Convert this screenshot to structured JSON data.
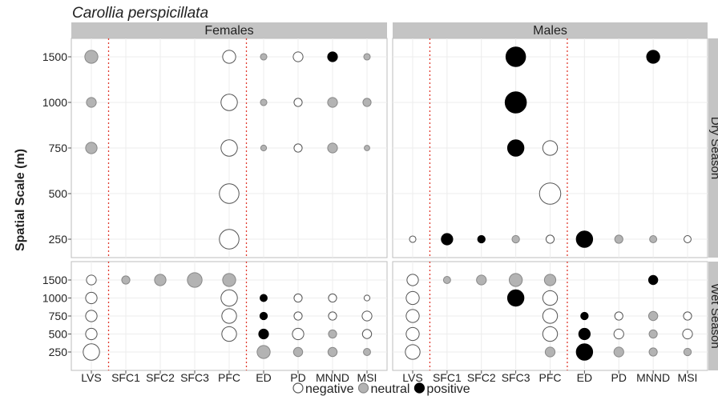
{
  "chart_data": {
    "type": "scatter",
    "title": "Carollia perspicillata",
    "ylabel": "Spatial Scale (m)",
    "xlabel": "",
    "columns": [
      "LVS",
      "SFC1",
      "SFC2",
      "SFC3",
      "PFC",
      "ED",
      "PD",
      "MNND",
      "MSI"
    ],
    "scales": [
      1500,
      1000,
      750,
      500,
      250
    ],
    "sex_panels": [
      "Females",
      "Males"
    ],
    "season_panels": [
      "Dry Season",
      "Wet Season"
    ],
    "separators_after_columns": [
      "LVS",
      "PFC"
    ],
    "grid": true,
    "size_encoding": "relative effect size",
    "legend": {
      "position": "bottom",
      "entries": [
        {
          "key": "negative",
          "label": "negative",
          "fill": "#ffffff",
          "stroke": "#555555"
        },
        {
          "key": "neutral",
          "label": "neutral",
          "fill": "#b3b3b3",
          "stroke": "#888888"
        },
        {
          "key": "positive",
          "label": "positive",
          "fill": "#000000",
          "stroke": "#000000"
        }
      ]
    },
    "panels": [
      {
        "sex": "Females",
        "season": "Dry Season",
        "points": [
          {
            "x": "LVS",
            "y": 1500,
            "effect": "neutral",
            "size": 3
          },
          {
            "x": "PFC",
            "y": 1500,
            "effect": "negative",
            "size": 3
          },
          {
            "x": "ED",
            "y": 1500,
            "effect": "neutral",
            "size": 1
          },
          {
            "x": "PD",
            "y": 1500,
            "effect": "negative",
            "size": 2
          },
          {
            "x": "MNND",
            "y": 1500,
            "effect": "positive",
            "size": 2
          },
          {
            "x": "MSI",
            "y": 1500,
            "effect": "neutral",
            "size": 1
          },
          {
            "x": "LVS",
            "y": 1000,
            "effect": "neutral",
            "size": 2
          },
          {
            "x": "PFC",
            "y": 1000,
            "effect": "negative",
            "size": 4
          },
          {
            "x": "ED",
            "y": 1000,
            "effect": "neutral",
            "size": 1
          },
          {
            "x": "PD",
            "y": 1000,
            "effect": "negative",
            "size": 1.5
          },
          {
            "x": "MNND",
            "y": 1000,
            "effect": "neutral",
            "size": 2
          },
          {
            "x": "MSI",
            "y": 1000,
            "effect": "neutral",
            "size": 1.5
          },
          {
            "x": "LVS",
            "y": 750,
            "effect": "neutral",
            "size": 2.5
          },
          {
            "x": "PFC",
            "y": 750,
            "effect": "negative",
            "size": 4
          },
          {
            "x": "ED",
            "y": 750,
            "effect": "neutral",
            "size": 0.8
          },
          {
            "x": "PD",
            "y": 750,
            "effect": "negative",
            "size": 1.5
          },
          {
            "x": "MNND",
            "y": 750,
            "effect": "neutral",
            "size": 2
          },
          {
            "x": "MSI",
            "y": 750,
            "effect": "neutral",
            "size": 0.7
          },
          {
            "x": "PFC",
            "y": 500,
            "effect": "negative",
            "size": 5
          },
          {
            "x": "PFC",
            "y": 250,
            "effect": "negative",
            "size": 5
          }
        ]
      },
      {
        "sex": "Males",
        "season": "Dry Season",
        "points": [
          {
            "x": "SFC3",
            "y": 1500,
            "effect": "positive",
            "size": 5
          },
          {
            "x": "MNND",
            "y": 1500,
            "effect": "positive",
            "size": 3
          },
          {
            "x": "SFC3",
            "y": 1000,
            "effect": "positive",
            "size": 5.5
          },
          {
            "x": "SFC3",
            "y": 750,
            "effect": "positive",
            "size": 4
          },
          {
            "x": "PFC",
            "y": 750,
            "effect": "negative",
            "size": 3.5
          },
          {
            "x": "PFC",
            "y": 500,
            "effect": "negative",
            "size": 5.5
          },
          {
            "x": "LVS",
            "y": 250,
            "effect": "negative",
            "size": 1
          },
          {
            "x": "SFC1",
            "y": 250,
            "effect": "positive",
            "size": 2.5
          },
          {
            "x": "SFC2",
            "y": 250,
            "effect": "positive",
            "size": 1.3
          },
          {
            "x": "SFC3",
            "y": 250,
            "effect": "neutral",
            "size": 1.3
          },
          {
            "x": "PFC",
            "y": 250,
            "effect": "negative",
            "size": 1.5
          },
          {
            "x": "ED",
            "y": 250,
            "effect": "positive",
            "size": 4
          },
          {
            "x": "PD",
            "y": 250,
            "effect": "neutral",
            "size": 1.5
          },
          {
            "x": "MNND",
            "y": 250,
            "effect": "neutral",
            "size": 1.2
          },
          {
            "x": "MSI",
            "y": 250,
            "effect": "negative",
            "size": 1.2
          }
        ]
      },
      {
        "sex": "Females",
        "season": "Wet Season",
        "points": [
          {
            "x": "LVS",
            "y": 1500,
            "effect": "negative",
            "size": 2
          },
          {
            "x": "SFC1",
            "y": 1500,
            "effect": "neutral",
            "size": 1.5
          },
          {
            "x": "SFC2",
            "y": 1500,
            "effect": "neutral",
            "size": 2.5
          },
          {
            "x": "SFC3",
            "y": 1500,
            "effect": "neutral",
            "size": 3.5
          },
          {
            "x": "PFC",
            "y": 1500,
            "effect": "neutral",
            "size": 3
          },
          {
            "x": "LVS",
            "y": 1000,
            "effect": "negative",
            "size": 2.5
          },
          {
            "x": "PFC",
            "y": 1000,
            "effect": "negative",
            "size": 4
          },
          {
            "x": "ED",
            "y": 1000,
            "effect": "positive",
            "size": 1.2
          },
          {
            "x": "PD",
            "y": 1000,
            "effect": "negative",
            "size": 1.5
          },
          {
            "x": "MNND",
            "y": 1000,
            "effect": "negative",
            "size": 1.5
          },
          {
            "x": "MSI",
            "y": 1000,
            "effect": "negative",
            "size": 0.8
          },
          {
            "x": "LVS",
            "y": 750,
            "effect": "negative",
            "size": 2.5
          },
          {
            "x": "PFC",
            "y": 750,
            "effect": "negative",
            "size": 3.5
          },
          {
            "x": "ED",
            "y": 750,
            "effect": "positive",
            "size": 1.3
          },
          {
            "x": "PD",
            "y": 750,
            "effect": "negative",
            "size": 1.5
          },
          {
            "x": "MNND",
            "y": 750,
            "effect": "negative",
            "size": 1.5
          },
          {
            "x": "MSI",
            "y": 750,
            "effect": "negative",
            "size": 2
          },
          {
            "x": "LVS",
            "y": 500,
            "effect": "negative",
            "size": 2.5
          },
          {
            "x": "PFC",
            "y": 500,
            "effect": "negative",
            "size": 3.5
          },
          {
            "x": "ED",
            "y": 500,
            "effect": "positive",
            "size": 2
          },
          {
            "x": "PD",
            "y": 500,
            "effect": "negative",
            "size": 2.5
          },
          {
            "x": "MNND",
            "y": 500,
            "effect": "neutral",
            "size": 1.5
          },
          {
            "x": "MSI",
            "y": 500,
            "effect": "negative",
            "size": 1.8
          },
          {
            "x": "LVS",
            "y": 250,
            "effect": "negative",
            "size": 4
          },
          {
            "x": "ED",
            "y": 250,
            "effect": "neutral",
            "size": 3
          },
          {
            "x": "PD",
            "y": 250,
            "effect": "neutral",
            "size": 1.8
          },
          {
            "x": "MNND",
            "y": 250,
            "effect": "neutral",
            "size": 1.8
          },
          {
            "x": "MSI",
            "y": 250,
            "effect": "neutral",
            "size": 1.2
          }
        ]
      },
      {
        "sex": "Males",
        "season": "Wet Season",
        "points": [
          {
            "x": "LVS",
            "y": 1500,
            "effect": "negative",
            "size": 2.5
          },
          {
            "x": "SFC1",
            "y": 1500,
            "effect": "neutral",
            "size": 1.2
          },
          {
            "x": "SFC2",
            "y": 1500,
            "effect": "neutral",
            "size": 2
          },
          {
            "x": "SFC3",
            "y": 1500,
            "effect": "neutral",
            "size": 3
          },
          {
            "x": "PFC",
            "y": 1500,
            "effect": "neutral",
            "size": 2.5
          },
          {
            "x": "MNND",
            "y": 1500,
            "effect": "positive",
            "size": 1.8
          },
          {
            "x": "LVS",
            "y": 1000,
            "effect": "negative",
            "size": 3
          },
          {
            "x": "SFC3",
            "y": 1000,
            "effect": "positive",
            "size": 4
          },
          {
            "x": "PFC",
            "y": 1000,
            "effect": "negative",
            "size": 3.5
          },
          {
            "x": "LVS",
            "y": 750,
            "effect": "negative",
            "size": 3
          },
          {
            "x": "PFC",
            "y": 750,
            "effect": "negative",
            "size": 3.5
          },
          {
            "x": "ED",
            "y": 750,
            "effect": "positive",
            "size": 1.3
          },
          {
            "x": "PD",
            "y": 750,
            "effect": "negative",
            "size": 1.5
          },
          {
            "x": "MNND",
            "y": 750,
            "effect": "neutral",
            "size": 1.8
          },
          {
            "x": "MSI",
            "y": 750,
            "effect": "negative",
            "size": 1.5
          },
          {
            "x": "LVS",
            "y": 500,
            "effect": "negative",
            "size": 3
          },
          {
            "x": "PFC",
            "y": 500,
            "effect": "negative",
            "size": 3.5
          },
          {
            "x": "ED",
            "y": 500,
            "effect": "positive",
            "size": 2.5
          },
          {
            "x": "PD",
            "y": 500,
            "effect": "negative",
            "size": 2
          },
          {
            "x": "MNND",
            "y": 500,
            "effect": "neutral",
            "size": 1.5
          },
          {
            "x": "MSI",
            "y": 500,
            "effect": "negative",
            "size": 2
          },
          {
            "x": "LVS",
            "y": 250,
            "effect": "negative",
            "size": 3.5
          },
          {
            "x": "PFC",
            "y": 250,
            "effect": "neutral",
            "size": 2
          },
          {
            "x": "ED",
            "y": 250,
            "effect": "positive",
            "size": 4
          },
          {
            "x": "PD",
            "y": 250,
            "effect": "neutral",
            "size": 2
          },
          {
            "x": "MNND",
            "y": 250,
            "effect": "neutral",
            "size": 1.5
          },
          {
            "x": "MSI",
            "y": 250,
            "effect": "neutral",
            "size": 1.3
          }
        ]
      }
    ]
  }
}
